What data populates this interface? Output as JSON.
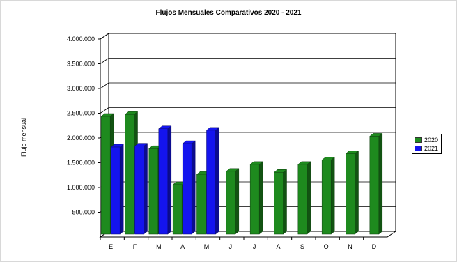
{
  "chart_data": {
    "type": "bar",
    "title": "Flujos Mensuales Comparativos 2020 - 2021",
    "xlabel": "",
    "ylabel": "Flujo mensual",
    "categories": [
      "E",
      "F",
      "M",
      "A",
      "M",
      "J",
      "J",
      "A",
      "S",
      "O",
      "N",
      "D"
    ],
    "ylim": [
      0,
      4000000
    ],
    "yticks": [
      "4.000.000",
      "3.500.000",
      "3.000.000",
      "2.500.000",
      "2.000.000",
      "1.500.000",
      "1.000.000",
      "500.000"
    ],
    "series": [
      {
        "name": "2020",
        "color": "#1e8a1e",
        "values": [
          2380000,
          2420000,
          1730000,
          1000000,
          1210000,
          1270000,
          1410000,
          1250000,
          1410000,
          1500000,
          1630000,
          1980000
        ]
      },
      {
        "name": "2021",
        "color": "#1414ee",
        "values": [
          1760000,
          1780000,
          2130000,
          1830000,
          2100000,
          null,
          null,
          null,
          null,
          null,
          null,
          null
        ]
      }
    ],
    "grid": true,
    "legend_position": "right",
    "three_d": true
  }
}
